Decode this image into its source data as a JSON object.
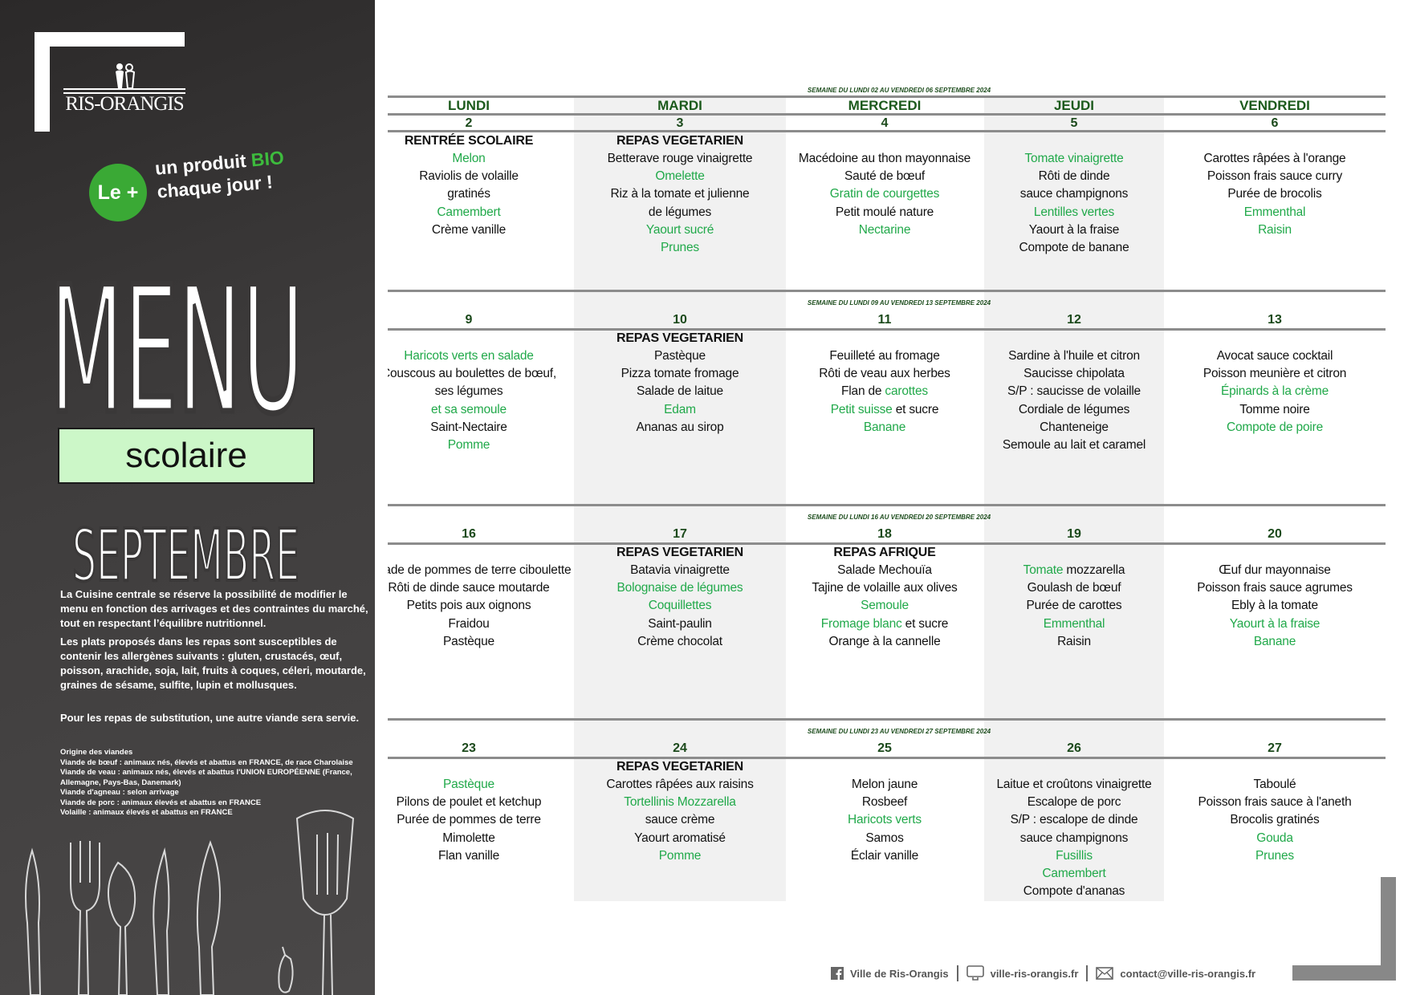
{
  "sidebar": {
    "logo_text": "RIS-ORANGIS",
    "le_plus": "Le +",
    "bio_line1_a": "un produit ",
    "bio_line1_b": "BIO",
    "bio_line2": "chaque jour !",
    "menu_title": "MENU",
    "subtitle": "scolaire",
    "month": "SEPTEMBRE",
    "paragraphs": [
      "La Cuisine centrale se réserve la possibilité de modifier le menu en fonction des arrivages et des contraintes du marché, tout en respectant l’équilibre nutritionnel.",
      "Les plats proposés dans les repas sont susceptibles de contenir les allergènes suivants : gluten, crustacés, œuf, poisson, arachide, soja, lait, fruits à coques, céleri, moutarde, graines de sésame, sulfite, lupin et mollusques.",
      "Pour les repas de substitution, une autre viande sera servie."
    ],
    "origine_title": "Origine des viandes",
    "origine_lines": [
      "Viande de bœuf : animaux nés, élevés et abattus en FRANCE, de race Charolaise",
      "Viande de veau : animaux nés, élevés et abattus l'UNION EUROPÉENNE (France, Allemagne, Pays-Bas, Danemark)",
      "Viande d'agneau : selon arrivage",
      "Viande de porc : animaux élevés et abattus en FRANCE",
      "Volaille : animaux élevés et abattus en FRANCE"
    ]
  },
  "colors": {
    "green": "#21a94a",
    "header_green": "#1c5a1c",
    "bio_badge": "#3aa935",
    "scolaire_bg": "#ccf7c8"
  },
  "days": [
    "LUNDI",
    "MARDI",
    "MERCREDI",
    "JEUDI",
    "VENDREDI"
  ],
  "weeks": [
    {
      "label": "SEMAINE DU LUNDI 02 AU VENDREDI 06 SEPTEMBRE 2024",
      "days": [
        {
          "num": "2",
          "title": "RENTRÉE SCOLAIRE",
          "items": [
            {
              "g": "Melon"
            },
            "Raviolis de volaille",
            "gratinés",
            {
              "g": "Camembert"
            },
            "Crème vanille"
          ]
        },
        {
          "num": "3",
          "title": "REPAS VEGETARIEN",
          "items": [
            "Betterave rouge vinaigrette",
            {
              "g": "Omelette"
            },
            "Riz à la tomate et julienne",
            "de légumes",
            {
              "g": "Yaourt sucré"
            },
            {
              "g": "Prunes"
            }
          ]
        },
        {
          "num": "4",
          "title": "",
          "items": [
            "Macédoine au thon mayonnaise",
            "Sauté de bœuf",
            {
              "g": "Gratin de courgettes"
            },
            "Petit moulé nature",
            {
              "g": "Nectarine"
            }
          ]
        },
        {
          "num": "5",
          "title": "",
          "items": [
            {
              "g": "Tomate vinaigrette"
            },
            "Rôti de dinde",
            "sauce champignons",
            {
              "g": "Lentilles vertes"
            },
            "Yaourt à la fraise",
            "Compote de banane"
          ]
        },
        {
          "num": "6",
          "title": "",
          "items": [
            "Carottes râpées à l'orange",
            "Poisson frais sauce curry",
            "Purée de brocolis",
            {
              "g": "Emmenthal"
            },
            {
              "g": "Raisin"
            }
          ]
        }
      ]
    },
    {
      "label": "SEMAINE DU LUNDI 09 AU VENDREDI 13 SEPTEMBRE 2024",
      "days": [
        {
          "num": "9",
          "title": "",
          "items": [
            {
              "g": "Haricots verts en salade"
            },
            "Couscous au boulettes de bœuf,",
            "ses légumes",
            {
              "g": "et sa semoule"
            },
            "Saint-Nectaire",
            {
              "g": "Pomme"
            }
          ]
        },
        {
          "num": "10",
          "title": "REPAS VEGETARIEN",
          "items": [
            "Pastèque",
            "Pizza tomate fromage",
            "Salade de laitue",
            {
              "g": "Edam"
            },
            "Ananas au sirop"
          ]
        },
        {
          "num": "11",
          "title": "",
          "items": [
            "Feuilleté au fromage",
            "Rôti de veau aux herbes",
            [
              {
                "t": "Flan de "
              },
              {
                "g": "carottes"
              }
            ],
            [
              {
                "g": "Petit suisse"
              },
              {
                "t": " et sucre"
              }
            ],
            {
              "g": "Banane"
            }
          ]
        },
        {
          "num": "12",
          "title": "",
          "items": [
            "Sardine à l'huile et citron",
            "Saucisse chipolata",
            "S/P : saucisse de volaille",
            "Cordiale de légumes",
            "Chanteneige",
            "Semoule au lait et caramel"
          ]
        },
        {
          "num": "13",
          "title": "",
          "items": [
            "Avocat sauce cocktail",
            "Poisson meunière et citron",
            {
              "g": "Épinards à la crème"
            },
            "Tomme noire",
            {
              "g": "Compote de poire"
            }
          ]
        }
      ]
    },
    {
      "label": "SEMAINE DU LUNDI 16 AU VENDREDI 20 SEPTEMBRE 2024",
      "days": [
        {
          "num": "16",
          "title": "",
          "items": [
            "Salade de pommes de terre ciboulette",
            "Rôti de dinde sauce moutarde",
            "Petits pois aux oignons",
            "Fraidou",
            "Pastèque"
          ]
        },
        {
          "num": "17",
          "title": "REPAS VEGETARIEN",
          "items": [
            "Batavia vinaigrette",
            {
              "g": "Bolognaise de légumes"
            },
            {
              "g": "Coquillettes"
            },
            "Saint-paulin",
            "Crème chocolat"
          ]
        },
        {
          "num": "18",
          "title": "REPAS AFRIQUE",
          "items": [
            "Salade Mechouïa",
            "Tajine de volaille aux olives",
            {
              "g": "Semoule"
            },
            [
              {
                "g": "Fromage blanc"
              },
              {
                "t": " et sucre"
              }
            ],
            "Orange à la cannelle"
          ]
        },
        {
          "num": "19",
          "title": "",
          "items": [
            [
              {
                "g": "Tomate"
              },
              {
                "t": " mozzarella"
              }
            ],
            "Goulash de bœuf",
            "Purée de carottes",
            {
              "g": "Emmenthal"
            },
            "Raisin"
          ]
        },
        {
          "num": "20",
          "title": "",
          "items": [
            "Œuf dur mayonnaise",
            "Poisson frais sauce agrumes",
            "Ebly à la tomate",
            {
              "g": "Yaourt à la fraise"
            },
            {
              "g": "Banane"
            }
          ]
        }
      ]
    },
    {
      "label": "SEMAINE DU LUNDI 23 AU VENDREDI 27 SEPTEMBRE 2024",
      "days": [
        {
          "num": "23",
          "title": "",
          "items": [
            {
              "g": "Pastèque"
            },
            "Pilons de poulet et ketchup",
            "Purée de pommes de terre",
            "Mimolette",
            "Flan vanille"
          ]
        },
        {
          "num": "24",
          "title": "REPAS VEGETARIEN",
          "items": [
            "Carottes râpées aux raisins",
            {
              "g": "Tortellinis Mozzarella"
            },
            "sauce crème",
            "Yaourt aromatisé",
            {
              "g": "Pomme"
            }
          ]
        },
        {
          "num": "25",
          "title": "",
          "items": [
            "Melon jaune",
            "Rosbeef",
            {
              "g": "Haricots verts"
            },
            "Samos",
            "Éclair vanille"
          ]
        },
        {
          "num": "26",
          "title": "",
          "items": [
            "Laitue et croûtons vinaigrette",
            "Escalope de porc",
            "S/P : escalope de dinde",
            "sauce champignons",
            {
              "g": "Fusillis"
            },
            {
              "g": "Camembert"
            },
            "Compote d'ananas"
          ]
        },
        {
          "num": "27",
          "title": "",
          "items": [
            "Taboulé",
            "Poisson frais sauce à l'aneth",
            "Brocolis gratinés",
            {
              "g": "Gouda"
            },
            {
              "g": "Prunes"
            }
          ]
        }
      ]
    }
  ],
  "footer": {
    "facebook_icon": "facebook-icon",
    "facebook": "Ville de Ris-Orangis",
    "website_icon": "monitor-icon",
    "website": "ville-ris-orangis.fr",
    "email_icon": "envelope-icon",
    "email": "contact@ville-ris-orangis.fr"
  }
}
